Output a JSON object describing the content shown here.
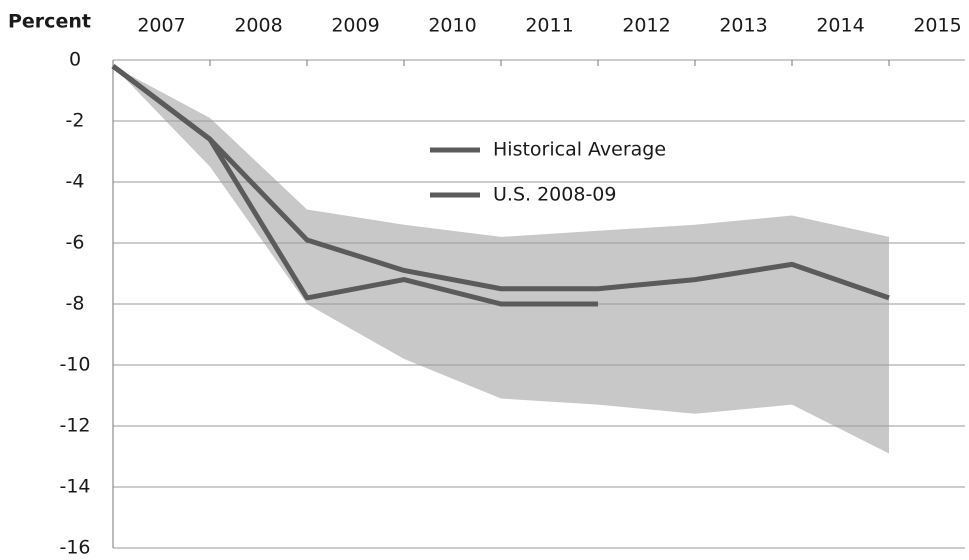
{
  "chart_data": {
    "type": "line",
    "y_label": "Percent",
    "categories": [
      "2007",
      "2008",
      "2009",
      "2010",
      "2011",
      "2012",
      "2013",
      "2014",
      "2015"
    ],
    "series": [
      {
        "name": "Historical Average",
        "color": "#5b5b5b",
        "values": [
          -0.2,
          -2.6,
          -5.9,
          -6.9,
          -7.5,
          -7.5,
          -7.2,
          -6.7,
          -7.8
        ]
      },
      {
        "name": "U.S. 2008-09",
        "color": "#5b5b5b",
        "values": [
          -0.2,
          -2.6,
          -7.8,
          -7.2,
          -8.0,
          -8.0,
          null,
          null,
          null
        ]
      }
    ],
    "band": {
      "color": "#c8c8c8",
      "upper": [
        -0.2,
        -1.9,
        -4.9,
        -5.4,
        -5.8,
        -5.6,
        -5.4,
        -5.1,
        -5.8
      ],
      "lower": [
        -0.2,
        -3.5,
        -8.0,
        -9.8,
        -11.1,
        -11.3,
        -11.6,
        -11.3,
        -12.9
      ]
    },
    "ylim": [
      -16,
      0
    ],
    "yticks": [
      0,
      -2,
      -4,
      -6,
      -8,
      -10,
      -12,
      -14,
      -16
    ],
    "grid": true
  }
}
